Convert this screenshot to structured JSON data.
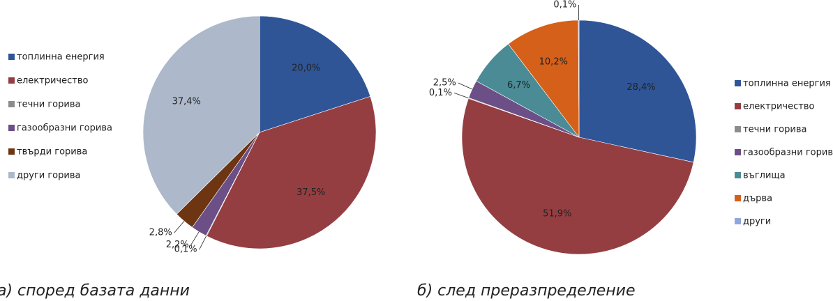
{
  "chart_data": [
    {
      "type": "pie",
      "title": "а) според базата данни",
      "categories": [
        "топлинна енергия",
        "електричество",
        "течни горива",
        "газообразни горива",
        "твърди горива",
        "други горива"
      ],
      "values": [
        20.0,
        37.5,
        0.1,
        2.2,
        2.8,
        37.4
      ],
      "value_labels": [
        "20,0%",
        "37,5%",
        "0,1%",
        "2,2%",
        "2,8%",
        "37,4%"
      ],
      "colors": [
        "#2f5597",
        "#943e42",
        "#8c8c8c",
        "#6b4f86",
        "#6e3513",
        "#adb9ca"
      ]
    },
    {
      "type": "pie",
      "title": "б) след преразпределение",
      "categories": [
        "топлинна енергия",
        "електричество",
        "течни горива",
        "газообразни горива",
        "въглища",
        "дърва",
        "други"
      ],
      "values": [
        28.4,
        51.9,
        0.1,
        2.5,
        6.7,
        10.2,
        0.1
      ],
      "value_labels": [
        "28,4%",
        "51,9%",
        "0,1%",
        "2,5%",
        "6,7%",
        "10,2%",
        "0,1%"
      ],
      "colors": [
        "#2f5597",
        "#943e42",
        "#8c8c8c",
        "#6b4f86",
        "#4a8b96",
        "#d4601a",
        "#8fa6d9"
      ]
    }
  ]
}
